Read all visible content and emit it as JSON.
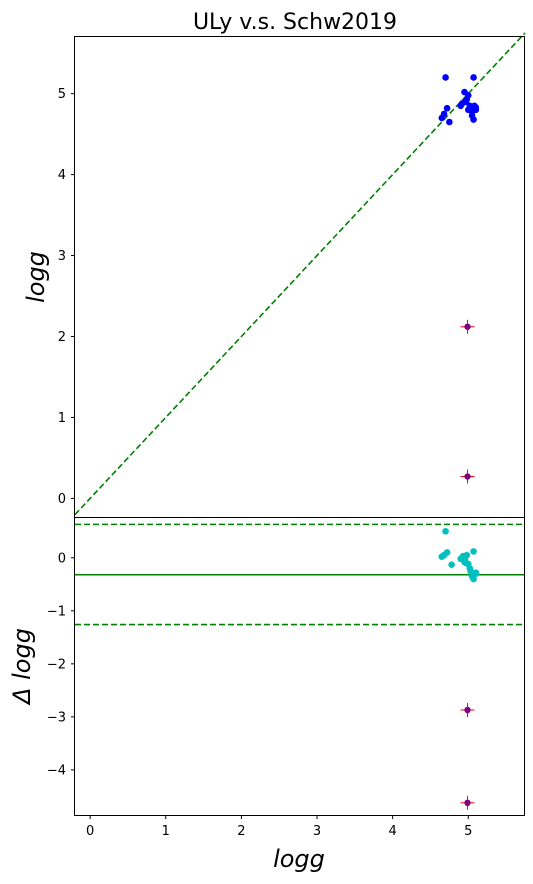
{
  "chart_data": [
    {
      "type": "scatter",
      "title": "ULy v.s. Schw2019",
      "xlabel": "",
      "ylabel": "logg",
      "xlim": [
        -0.2,
        5.75
      ],
      "ylim": [
        -0.23,
        5.7
      ],
      "x_ticks": [
        "0",
        "1",
        "2",
        "3",
        "4",
        "5"
      ],
      "y_ticks": [
        "0",
        "1",
        "2",
        "3",
        "4",
        "5"
      ],
      "grid": false,
      "reference_line": {
        "style": "dashed",
        "color": "#008000",
        "slope": 1,
        "intercept": 0
      },
      "series": [
        {
          "marker": "circle",
          "color": "#0000ff",
          "points": [
            [
              4.7,
              5.2
            ],
            [
              4.72,
              4.82
            ],
            [
              4.68,
              4.75
            ],
            [
              4.65,
              4.7
            ],
            [
              4.75,
              4.65
            ],
            [
              4.9,
              4.85
            ],
            [
              4.92,
              4.88
            ],
            [
              4.95,
              5.02
            ],
            [
              4.97,
              4.9
            ],
            [
              5.0,
              4.98
            ],
            [
              5.0,
              4.8
            ],
            [
              5.02,
              4.85
            ],
            [
              5.05,
              4.78
            ],
            [
              5.05,
              4.73
            ],
            [
              5.07,
              4.68
            ],
            [
              5.07,
              5.2
            ],
            [
              5.08,
              4.85
            ],
            [
              5.1,
              4.8
            ],
            [
              5.1,
              4.83
            ],
            [
              4.98,
              4.93
            ]
          ]
        },
        {
          "marker": "plus-with-dot",
          "color": "#ff0000",
          "dot_color": "#800080",
          "points": [
            [
              4.99,
              2.12
            ],
            [
              4.99,
              0.27
            ]
          ]
        }
      ]
    },
    {
      "type": "scatter",
      "title": "",
      "xlabel": "logg",
      "ylabel": "Δ logg",
      "xlim": [
        -0.2,
        5.75
      ],
      "ylim": [
        -4.85,
        0.75
      ],
      "x_ticks": [
        "0",
        "1",
        "2",
        "3",
        "4",
        "5"
      ],
      "y_ticks": [
        "−4",
        "−3",
        "−2",
        "−1",
        "0"
      ],
      "grid": false,
      "reference_lines": [
        {
          "style": "solid",
          "color": "#008000",
          "y": -0.32
        },
        {
          "style": "dashed",
          "color": "#008000",
          "y": 0.63
        },
        {
          "style": "dashed",
          "color": "#008000",
          "y": -1.26
        }
      ],
      "series": [
        {
          "marker": "circle",
          "color": "#00bfbf",
          "points": [
            [
              4.7,
              0.5
            ],
            [
              4.65,
              0.02
            ],
            [
              4.68,
              0.05
            ],
            [
              4.72,
              0.1
            ],
            [
              4.78,
              -0.13
            ],
            [
              4.9,
              -0.02
            ],
            [
              4.93,
              0.03
            ],
            [
              4.95,
              -0.08
            ],
            [
              4.97,
              -0.1
            ],
            [
              4.98,
              0.05
            ],
            [
              5.0,
              -0.12
            ],
            [
              5.02,
              -0.2
            ],
            [
              5.03,
              -0.25
            ],
            [
              5.05,
              -0.3
            ],
            [
              5.05,
              -0.35
            ],
            [
              5.07,
              -0.4
            ],
            [
              5.07,
              0.12
            ],
            [
              5.1,
              -0.28
            ],
            [
              5.1,
              -0.3
            ],
            [
              4.96,
              -0.05
            ]
          ]
        },
        {
          "marker": "plus-with-dot",
          "color": "#ff0000",
          "dot_color": "#800080",
          "points": [
            [
              4.99,
              -2.87
            ],
            [
              4.99,
              -4.62
            ]
          ]
        }
      ]
    }
  ]
}
